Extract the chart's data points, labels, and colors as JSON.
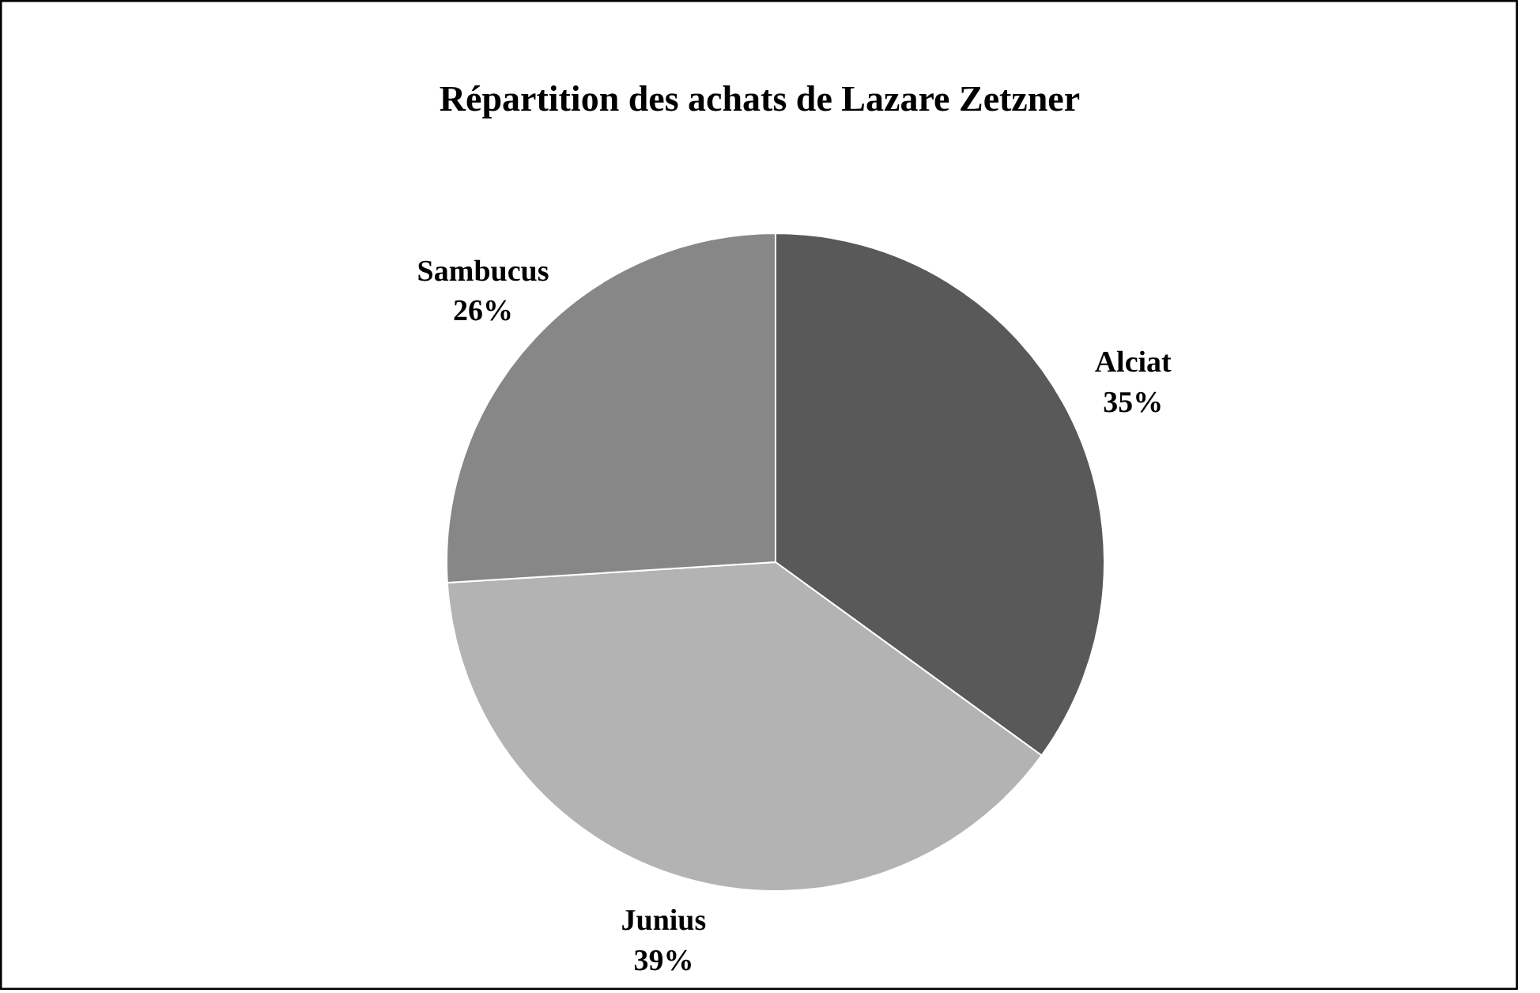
{
  "chart_data": {
    "type": "pie",
    "title": "Répartition des achats de Lazare Zetzner",
    "categories": [
      "Alciat",
      "Junius",
      "Sambucus"
    ],
    "values": [
      35,
      39,
      26
    ],
    "colors": [
      "#595959",
      "#b3b3b3",
      "#878787"
    ],
    "value_labels": [
      "35%",
      "39%",
      "26%"
    ]
  }
}
